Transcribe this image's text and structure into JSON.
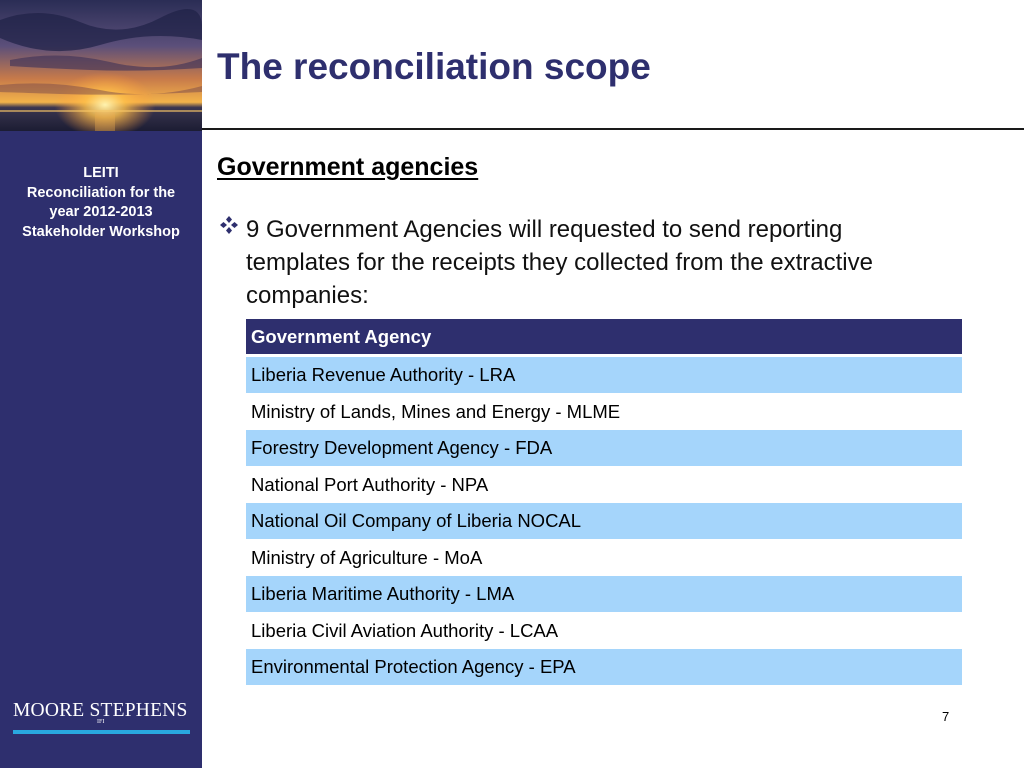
{
  "sidebar": {
    "lines": [
      "LEITI",
      "Reconciliation for the",
      "year 2012-2013",
      "Stakeholder Workshop"
    ],
    "logo_text": "MOORE STEPHENS",
    "logo_sub": "IFI"
  },
  "slide": {
    "title": "The reconciliation scope",
    "subheading": "Government agencies",
    "bullet": "9 Government Agencies will requested to send reporting templates for the receipts they collected from the extractive companies:",
    "page_number": "7"
  },
  "table": {
    "header": "Government Agency",
    "rows": [
      "Liberia Revenue Authority - LRA",
      "Ministry of Lands, Mines and Energy - MLME",
      "Forestry Development Agency - FDA",
      "National Port Authority - NPA",
      "National Oil Company of Liberia NOCAL",
      "Ministry of Agriculture - MoA",
      "Liberia Maritime Authority - LMA",
      "Liberia Civil Aviation Authority - LCAA",
      "Environmental Protection Agency - EPA"
    ]
  },
  "colors": {
    "navy": "#2e2f6e",
    "light_blue_row": "#a5d5fb",
    "logo_bar": "#29a8e0"
  },
  "icons": {
    "bullet": "four-diamond-bullet-icon"
  }
}
